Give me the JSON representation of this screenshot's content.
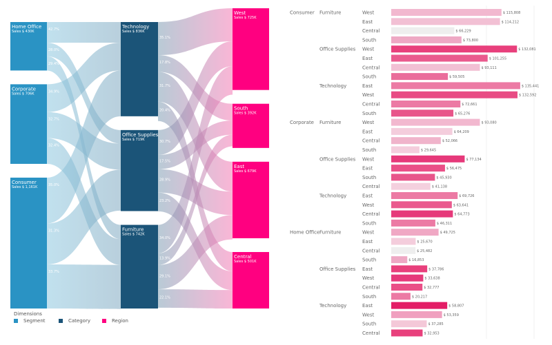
{
  "chart_data": [
    {
      "type": "sankey",
      "legend": {
        "title": "Dimensions",
        "items": [
          {
            "label": "Segment",
            "color": "#2a93c4"
          },
          {
            "label": "Category",
            "color": "#1b5478"
          },
          {
            "label": "Region",
            "color": "#ff0080"
          }
        ]
      },
      "segments": [
        {
          "name": "Home Office",
          "sales_label": "Sales $ 430K",
          "sales": 430,
          "flows_pct": [
            42.7,
            28.0,
            29.4
          ],
          "flow_labels": [
            "42.7%",
            "28.0%",
            "29.4%"
          ]
        },
        {
          "name": "Corporate",
          "sales_label": "Sales $ 706K",
          "sales": 706,
          "flows_pct": [
            34.9,
            32.7,
            32.4
          ],
          "flow_labels": [
            "34.9%",
            "32.7%",
            "32.4%"
          ]
        },
        {
          "name": "Consumer",
          "sales_label": "Sales $ 1,161K",
          "sales": 1161,
          "flows_pct": [
            35.0,
            31.3,
            33.7
          ],
          "flow_labels": [
            "35.0%",
            "31.3%",
            "33.7%"
          ]
        }
      ],
      "categories": [
        {
          "name": "Technology",
          "sales_label": "Sales $ 836K",
          "sales": 836,
          "flows_pct": [
            35.1,
            17.8,
            31.7,
            20.4
          ],
          "flow_labels": [
            "35.1%",
            "17.8%",
            "31.7%",
            "20.4%"
          ]
        },
        {
          "name": "Office Supplies",
          "sales_label": "Sales $ 719K",
          "sales": 719,
          "flows_pct": [
            30.7,
            17.5,
            28.9,
            23.2
          ],
          "flow_labels": [
            "30.7%",
            "17.5%",
            "28.9%",
            "23.2%"
          ]
        },
        {
          "name": "Furniture",
          "sales_label": "Sales $ 742K",
          "sales": 742,
          "flows_pct": [
            34.0,
            13.9,
            29.1,
            22.1
          ],
          "flow_labels": [
            "34.0%",
            "13.9%",
            "29.1%",
            "22.1%"
          ]
        }
      ],
      "regions": [
        {
          "name": "West",
          "sales_label": "Sales $ 725K",
          "sales": 725
        },
        {
          "name": "South",
          "sales_label": "Sales $ 392K",
          "sales": 392
        },
        {
          "name": "East",
          "sales_label": "Sales $ 679K",
          "sales": 679
        },
        {
          "name": "Central",
          "sales_label": "Sales $ 501K",
          "sales": 501
        }
      ]
    },
    {
      "type": "bar",
      "orientation": "horizontal",
      "xlim": [
        0,
        150000
      ],
      "grid": true,
      "rows": [
        {
          "segment": "Consumer",
          "category": "Furniture",
          "region": "West",
          "value": 115808,
          "label": "$ 115,808",
          "color": "#f2b8cf"
        },
        {
          "segment": "",
          "category": "",
          "region": "East",
          "value": 114212,
          "label": "$ 114,212",
          "color": "#f2c0d4"
        },
        {
          "segment": "",
          "category": "",
          "region": "Central",
          "value": 66229,
          "label": "$ 66,229",
          "color": "#eeeeee"
        },
        {
          "segment": "",
          "category": "",
          "region": "South",
          "value": 73800,
          "label": "$ 73,800",
          "color": "#eea8c4"
        },
        {
          "segment": "",
          "category": "Office Supplies",
          "region": "West",
          "value": 132081,
          "label": "$ 132,081",
          "color": "#e8407c"
        },
        {
          "segment": "",
          "category": "",
          "region": "East",
          "value": 101255,
          "label": "$ 101,255",
          "color": "#ea5a8e"
        },
        {
          "segment": "",
          "category": "",
          "region": "Central",
          "value": 93111,
          "label": "$ 93,111",
          "color": "#f2c0d4"
        },
        {
          "segment": "",
          "category": "",
          "region": "South",
          "value": 59505,
          "label": "$ 59,505",
          "color": "#ea6d9b"
        },
        {
          "segment": "",
          "category": "Technology",
          "region": "East",
          "value": 135441,
          "label": "$ 135,441",
          "color": "#ec7aa4"
        },
        {
          "segment": "",
          "category": "",
          "region": "West",
          "value": 132592,
          "label": "$ 132,592",
          "color": "#e84c84"
        },
        {
          "segment": "",
          "category": "",
          "region": "Central",
          "value": 72661,
          "label": "$ 72,661",
          "color": "#ec7aa4"
        },
        {
          "segment": "",
          "category": "",
          "region": "South",
          "value": 65276,
          "label": "$ 65,276",
          "color": "#e8558a"
        },
        {
          "segment": "Corporate",
          "category": "Furniture",
          "region": "West",
          "value": 93080,
          "label": "$ 93,080",
          "color": "#f2b8cf"
        },
        {
          "segment": "",
          "category": "",
          "region": "East",
          "value": 64209,
          "label": "$ 64,209",
          "color": "#f4cddc"
        },
        {
          "segment": "",
          "category": "",
          "region": "Central",
          "value": 52066,
          "label": "$ 52,066",
          "color": "#f0b4cb"
        },
        {
          "segment": "",
          "category": "",
          "region": "South",
          "value": 29645,
          "label": "$ 29,645",
          "color": "#f4cddc"
        },
        {
          "segment": "",
          "category": "Office Supplies",
          "region": "West",
          "value": 77134,
          "label": "$ 77,134",
          "color": "#e6397a"
        },
        {
          "segment": "",
          "category": "",
          "region": "East",
          "value": 56475,
          "label": "$ 56,475",
          "color": "#ea4f87"
        },
        {
          "segment": "",
          "category": "",
          "region": "South",
          "value": 45930,
          "label": "$ 45,930",
          "color": "#e8558a"
        },
        {
          "segment": "",
          "category": "",
          "region": "Central",
          "value": 41138,
          "label": "$ 41,138",
          "color": "#f4d0de"
        },
        {
          "segment": "",
          "category": "Technology",
          "region": "East",
          "value": 69726,
          "label": "$ 69,726",
          "color": "#ec7aa4"
        },
        {
          "segment": "",
          "category": "",
          "region": "West",
          "value": 63641,
          "label": "$ 63,641",
          "color": "#ea5a8e"
        },
        {
          "segment": "",
          "category": "",
          "region": "Central",
          "value": 64773,
          "label": "$ 64,773",
          "color": "#e6397a"
        },
        {
          "segment": "",
          "category": "",
          "region": "South",
          "value": 46311,
          "label": "$ 46,311",
          "color": "#ec7aa4"
        },
        {
          "segment": "Home Office",
          "category": "Furniture",
          "region": "West",
          "value": 49725,
          "label": "$ 49,725",
          "color": "#f0a8c4"
        },
        {
          "segment": "",
          "category": "",
          "region": "East",
          "value": 25670,
          "label": "$ 25,670",
          "color": "#f4cddc"
        },
        {
          "segment": "",
          "category": "",
          "region": "Central",
          "value": 25482,
          "label": "$ 25,482",
          "color": "#eeeeee"
        },
        {
          "segment": "",
          "category": "",
          "region": "South",
          "value": 16853,
          "label": "$ 16,853",
          "color": "#eea8c4"
        },
        {
          "segment": "",
          "category": "Office Supplies",
          "region": "East",
          "value": 37786,
          "label": "$ 37,786",
          "color": "#e8407c"
        },
        {
          "segment": "",
          "category": "",
          "region": "West",
          "value": 33638,
          "label": "$ 33,638",
          "color": "#e6397a"
        },
        {
          "segment": "",
          "category": "",
          "region": "Central",
          "value": 32777,
          "label": "$ 32,777",
          "color": "#ea4f87"
        },
        {
          "segment": "",
          "category": "",
          "region": "South",
          "value": 20217,
          "label": "$ 20,217",
          "color": "#ec7aa4"
        },
        {
          "segment": "",
          "category": "Technology",
          "region": "East",
          "value": 58807,
          "label": "$ 58,807",
          "color": "#e31d66"
        },
        {
          "segment": "",
          "category": "",
          "region": "West",
          "value": 53359,
          "label": "$ 53,359",
          "color": "#f0a0bf"
        },
        {
          "segment": "",
          "category": "",
          "region": "South",
          "value": 37285,
          "label": "$ 37,285",
          "color": "#f4c8d8"
        },
        {
          "segment": "",
          "category": "",
          "region": "Central",
          "value": 32953,
          "label": "$ 32,953",
          "color": "#e8407c"
        }
      ]
    }
  ]
}
